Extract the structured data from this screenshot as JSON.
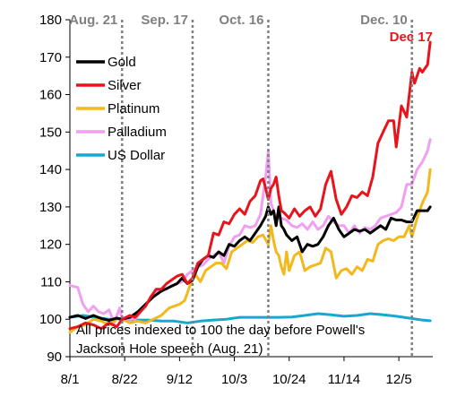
{
  "chart_data": {
    "type": "line",
    "ylim": [
      90,
      180
    ],
    "yticks": [
      90,
      100,
      110,
      120,
      130,
      140,
      150,
      160,
      170,
      180
    ],
    "xticks": [
      {
        "label": "8/1",
        "day": 0
      },
      {
        "label": "8/22",
        "day": 21
      },
      {
        "label": "9/12",
        "day": 42
      },
      {
        "label": "10/3",
        "day": 63
      },
      {
        "label": "10/24",
        "day": 84
      },
      {
        "label": "11/14",
        "day": 105
      },
      {
        "label": "12/5",
        "day": 126
      }
    ],
    "x_range_days": [
      0,
      139
    ],
    "grid": false,
    "legend_position": "top-left",
    "events": [
      {
        "label": "Aug. 21",
        "day": 20
      },
      {
        "label": "Sep. 17",
        "day": 47
      },
      {
        "label": "Oct. 16",
        "day": 76
      },
      {
        "label": "Dec. 10",
        "day": 131
      }
    ],
    "end_annotation": "Dec 17",
    "note_lines": [
      "All prices indexed to 100 the day before Powell's",
      "Jackson Hole speech (Aug. 21)"
    ],
    "series": [
      {
        "name": "Gold",
        "color": "#000000",
        "points": [
          [
            0,
            100.5
          ],
          [
            3,
            101
          ],
          [
            6,
            100.2
          ],
          [
            9,
            101
          ],
          [
            12,
            100.2
          ],
          [
            15,
            99.7
          ],
          [
            18,
            100.3
          ],
          [
            20,
            100
          ],
          [
            23,
            100.5
          ],
          [
            26,
            102
          ],
          [
            29,
            104
          ],
          [
            32,
            106
          ],
          [
            35,
            107.5
          ],
          [
            38,
            108.5
          ],
          [
            41,
            109.5
          ],
          [
            43,
            111
          ],
          [
            45,
            109.5
          ],
          [
            47,
            110.5
          ],
          [
            49,
            114
          ],
          [
            51,
            116
          ],
          [
            53,
            117
          ],
          [
            55,
            116.5
          ],
          [
            57,
            118
          ],
          [
            59,
            117
          ],
          [
            61,
            120
          ],
          [
            63,
            119.5
          ],
          [
            65,
            121
          ],
          [
            67,
            122
          ],
          [
            69,
            121
          ],
          [
            71,
            123
          ],
          [
            73,
            125
          ],
          [
            75,
            127.5
          ],
          [
            76,
            130
          ],
          [
            77,
            128
          ],
          [
            78,
            129
          ],
          [
            79,
            125
          ],
          [
            80,
            130
          ],
          [
            81,
            125
          ],
          [
            82,
            124
          ],
          [
            83,
            122.5
          ],
          [
            85,
            121
          ],
          [
            87,
            122
          ],
          [
            89,
            118
          ],
          [
            91,
            120
          ],
          [
            93,
            119.5
          ],
          [
            95,
            120
          ],
          [
            97,
            122
          ],
          [
            99,
            125
          ],
          [
            101,
            127
          ],
          [
            103,
            124
          ],
          [
            105,
            122
          ],
          [
            107,
            123
          ],
          [
            109,
            124
          ],
          [
            111,
            123.5
          ],
          [
            113,
            124
          ],
          [
            115,
            123
          ],
          [
            117,
            124
          ],
          [
            119,
            125
          ],
          [
            121,
            124
          ],
          [
            123,
            127
          ],
          [
            125,
            126.5
          ],
          [
            127,
            126.5
          ],
          [
            129,
            126
          ],
          [
            131,
            126
          ],
          [
            133,
            129
          ],
          [
            135,
            129
          ],
          [
            137,
            129
          ],
          [
            138,
            130
          ]
        ]
      },
      {
        "name": "Silver",
        "color": "#e8141b",
        "points": [
          [
            0,
            97.5
          ],
          [
            3,
            98
          ],
          [
            6,
            99
          ],
          [
            9,
            98.5
          ],
          [
            12,
            97.5
          ],
          [
            15,
            99
          ],
          [
            18,
            98
          ],
          [
            20,
            100
          ],
          [
            23,
            101
          ],
          [
            25,
            100.5
          ],
          [
            27,
            102
          ],
          [
            29,
            103.5
          ],
          [
            31,
            106
          ],
          [
            33,
            108
          ],
          [
            35,
            108
          ],
          [
            37,
            109.5
          ],
          [
            39,
            110.5
          ],
          [
            41,
            111.5
          ],
          [
            43,
            112
          ],
          [
            45,
            109.5
          ],
          [
            47,
            111
          ],
          [
            49,
            115
          ],
          [
            51,
            116
          ],
          [
            53,
            117
          ],
          [
            55,
            123
          ],
          [
            57,
            122.5
          ],
          [
            59,
            126
          ],
          [
            61,
            125.5
          ],
          [
            63,
            128
          ],
          [
            65,
            129.5
          ],
          [
            67,
            128
          ],
          [
            69,
            131.5
          ],
          [
            71,
            133
          ],
          [
            73,
            137
          ],
          [
            74,
            137.5
          ],
          [
            75,
            135
          ],
          [
            76,
            132
          ],
          [
            77,
            135
          ],
          [
            78,
            136
          ],
          [
            79,
            138
          ],
          [
            80,
            133
          ],
          [
            81,
            129
          ],
          [
            82,
            128.5
          ],
          [
            84,
            127
          ],
          [
            86,
            129.5
          ],
          [
            88,
            127.5
          ],
          [
            90,
            129
          ],
          [
            92,
            130
          ],
          [
            94,
            127.5
          ],
          [
            96,
            129.5
          ],
          [
            98,
            136
          ],
          [
            100,
            139.5
          ],
          [
            102,
            132
          ],
          [
            104,
            128
          ],
          [
            106,
            130
          ],
          [
            108,
            133
          ],
          [
            110,
            132.5
          ],
          [
            112,
            134
          ],
          [
            114,
            133
          ],
          [
            116,
            138
          ],
          [
            118,
            147
          ],
          [
            120,
            150
          ],
          [
            122,
            153
          ],
          [
            124,
            153
          ],
          [
            125,
            146
          ],
          [
            127,
            157
          ],
          [
            129,
            154
          ],
          [
            131,
            166
          ],
          [
            132,
            163
          ],
          [
            134,
            167
          ],
          [
            135,
            166
          ],
          [
            137,
            168
          ],
          [
            138,
            174
          ]
        ]
      },
      {
        "name": "Platinum",
        "color": "#f2b81c",
        "points": [
          [
            0,
            96.5
          ],
          [
            3,
            98
          ],
          [
            6,
            98.5
          ],
          [
            9,
            100
          ],
          [
            12,
            99.5
          ],
          [
            15,
            98.5
          ],
          [
            18,
            100
          ],
          [
            20,
            100
          ],
          [
            23,
            99
          ],
          [
            26,
            99.5
          ],
          [
            29,
            99
          ],
          [
            32,
            100
          ],
          [
            35,
            101
          ],
          [
            38,
            103
          ],
          [
            40,
            103.5
          ],
          [
            42,
            104
          ],
          [
            44,
            105
          ],
          [
            46,
            109
          ],
          [
            48,
            112
          ],
          [
            50,
            110
          ],
          [
            52,
            113
          ],
          [
            54,
            114
          ],
          [
            56,
            115
          ],
          [
            58,
            115
          ],
          [
            60,
            113.5
          ],
          [
            62,
            118
          ],
          [
            64,
            119
          ],
          [
            66,
            120
          ],
          [
            68,
            121
          ],
          [
            70,
            120.5
          ],
          [
            72,
            122
          ],
          [
            74,
            122.5
          ],
          [
            76,
            120
          ],
          [
            77,
            125
          ],
          [
            78,
            121
          ],
          [
            79,
            118
          ],
          [
            80,
            117
          ],
          [
            81,
            114
          ],
          [
            82,
            112
          ],
          [
            83,
            118
          ],
          [
            84,
            113
          ],
          [
            86,
            117
          ],
          [
            88,
            118
          ],
          [
            90,
            113
          ],
          [
            92,
            114
          ],
          [
            94,
            114.5
          ],
          [
            96,
            115
          ],
          [
            98,
            119
          ],
          [
            100,
            118
          ],
          [
            102,
            111
          ],
          [
            104,
            113
          ],
          [
            106,
            113.5
          ],
          [
            108,
            112
          ],
          [
            110,
            114
          ],
          [
            112,
            113
          ],
          [
            114,
            116
          ],
          [
            116,
            115.5
          ],
          [
            118,
            120
          ],
          [
            120,
            121
          ],
          [
            122,
            121.5
          ],
          [
            124,
            121
          ],
          [
            126,
            122
          ],
          [
            128,
            122
          ],
          [
            130,
            125
          ],
          [
            131,
            122
          ],
          [
            133,
            127
          ],
          [
            135,
            131
          ],
          [
            137,
            134
          ],
          [
            138,
            140
          ]
        ]
      },
      {
        "name": "Palladium",
        "color": "#f19ff1",
        "points": [
          [
            0,
            109
          ],
          [
            3,
            108.5
          ],
          [
            5,
            104
          ],
          [
            7,
            102
          ],
          [
            9,
            103.5
          ],
          [
            11,
            102
          ],
          [
            13,
            101.5
          ],
          [
            15,
            102.5
          ],
          [
            17,
            99
          ],
          [
            19,
            103
          ],
          [
            20,
            100
          ],
          [
            23,
            100
          ],
          [
            25,
            100
          ],
          [
            27,
            102
          ],
          [
            29,
            103.5
          ],
          [
            31,
            106
          ],
          [
            33,
            107
          ],
          [
            35,
            108
          ],
          [
            37,
            108
          ],
          [
            39,
            109
          ],
          [
            41,
            109.5
          ],
          [
            43,
            110
          ],
          [
            45,
            112
          ],
          [
            47,
            113
          ],
          [
            49,
            114
          ],
          [
            51,
            114.5
          ],
          [
            53,
            116
          ],
          [
            55,
            117
          ],
          [
            57,
            118
          ],
          [
            59,
            115
          ],
          [
            61,
            119.5
          ],
          [
            63,
            122
          ],
          [
            65,
            122.5
          ],
          [
            67,
            125
          ],
          [
            69,
            124.5
          ],
          [
            71,
            125
          ],
          [
            73,
            128
          ],
          [
            75,
            138
          ],
          [
            76,
            145
          ],
          [
            77,
            131
          ],
          [
            79,
            127
          ],
          [
            81,
            127
          ],
          [
            83,
            126.5
          ],
          [
            85,
            125
          ],
          [
            87,
            124.5
          ],
          [
            89,
            125.5
          ],
          [
            91,
            124
          ],
          [
            93,
            126
          ],
          [
            95,
            124
          ],
          [
            97,
            125
          ],
          [
            99,
            127.5
          ],
          [
            101,
            126
          ],
          [
            103,
            125
          ],
          [
            105,
            125
          ],
          [
            107,
            123
          ],
          [
            109,
            125
          ],
          [
            111,
            123
          ],
          [
            113,
            124.5
          ],
          [
            115,
            124
          ],
          [
            117,
            125
          ],
          [
            119,
            127
          ],
          [
            121,
            127.5
          ],
          [
            123,
            128
          ],
          [
            125,
            128.5
          ],
          [
            127,
            130
          ],
          [
            129,
            136
          ],
          [
            131,
            136
          ],
          [
            133,
            140
          ],
          [
            135,
            142
          ],
          [
            137,
            145
          ],
          [
            138,
            148
          ]
        ]
      },
      {
        "name": "US Dollar",
        "color": "#18a7d3",
        "points": [
          [
            0,
            100.5
          ],
          [
            5,
            101
          ],
          [
            10,
            100.5
          ],
          [
            15,
            100
          ],
          [
            20,
            100
          ],
          [
            25,
            99.8
          ],
          [
            30,
            99.8
          ],
          [
            35,
            99.5
          ],
          [
            40,
            99.5
          ],
          [
            45,
            99
          ],
          [
            50,
            99.5
          ],
          [
            55,
            99.8
          ],
          [
            60,
            100
          ],
          [
            65,
            100.5
          ],
          [
            70,
            100.5
          ],
          [
            75,
            100.5
          ],
          [
            80,
            100.5
          ],
          [
            85,
            100.6
          ],
          [
            90,
            101
          ],
          [
            95,
            101.5
          ],
          [
            100,
            101.2
          ],
          [
            105,
            100.8
          ],
          [
            110,
            101
          ],
          [
            115,
            101.5
          ],
          [
            120,
            101.2
          ],
          [
            125,
            100.8
          ],
          [
            130,
            100.3
          ],
          [
            135,
            99.8
          ],
          [
            138,
            99.6
          ]
        ]
      }
    ]
  }
}
